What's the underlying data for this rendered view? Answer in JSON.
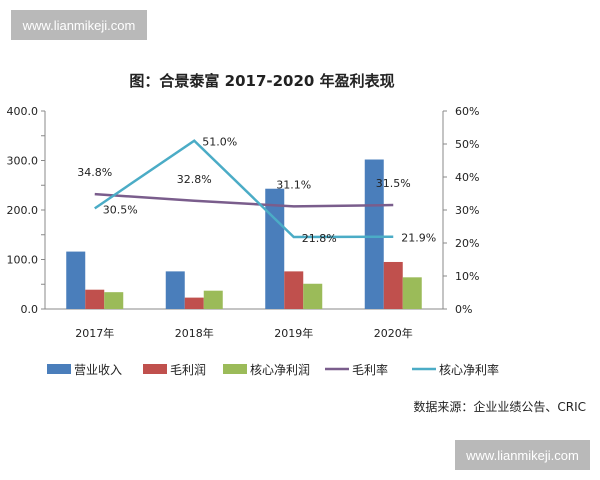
{
  "watermark": {
    "top": "www.lianmikeji.com",
    "bottom": "www.lianmikeji.com"
  },
  "chart_data": {
    "type": "bar",
    "title": "图：合景泰富 2017-2020 年盈利表现",
    "categories": [
      "2017年",
      "2018年",
      "2019年",
      "2020年"
    ],
    "ylim": [
      0,
      400
    ],
    "y_ticks": [
      "0.0",
      "100.0",
      "200.0",
      "300.0",
      "400.0"
    ],
    "y2lim": [
      0,
      60
    ],
    "y2_ticks": [
      "0%",
      "10%",
      "20%",
      "30%",
      "40%",
      "50%",
      "60%"
    ],
    "grid": false,
    "legend_position": "bottom",
    "series": [
      {
        "name": "营业收入",
        "kind": "bar",
        "axis": "left",
        "color": "#4a7ebb",
        "values": [
          116,
          76,
          243,
          302
        ]
      },
      {
        "name": "毛利润",
        "kind": "bar",
        "axis": "left",
        "color": "#c0504d",
        "values": [
          39,
          23,
          76,
          95
        ]
      },
      {
        "name": "核心净利润",
        "kind": "bar",
        "axis": "left",
        "color": "#9bbb59",
        "values": [
          34,
          37,
          51,
          64
        ]
      },
      {
        "name": "毛利率",
        "kind": "line",
        "axis": "right",
        "color": "#7a5d8c",
        "values": [
          34.8,
          32.8,
          31.1,
          31.5
        ],
        "labels": [
          "34.8%",
          "32.8%",
          "31.1%",
          "31.5%"
        ]
      },
      {
        "name": "核心净利率",
        "kind": "line",
        "axis": "right",
        "color": "#4bacc6",
        "values": [
          30.5,
          51.0,
          21.8,
          21.9
        ],
        "labels": [
          "30.5%",
          "51.0%",
          "21.8%",
          "21.9%"
        ]
      }
    ],
    "source": "数据来源：企业业绩公告、CRIC"
  }
}
